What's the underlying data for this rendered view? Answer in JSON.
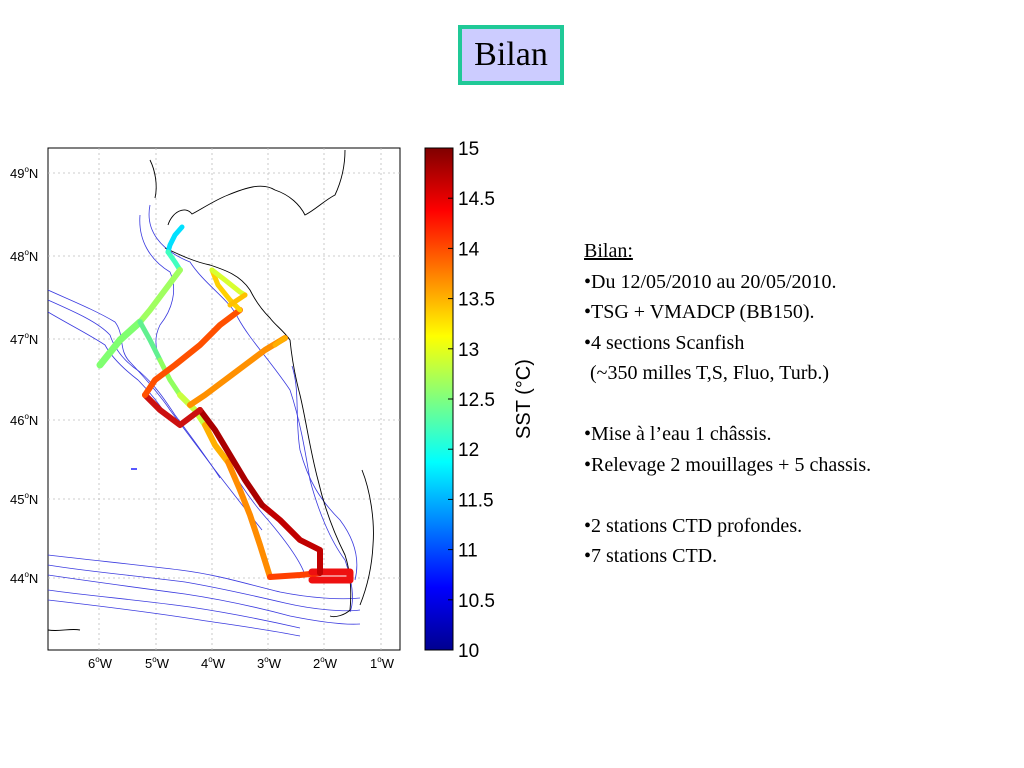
{
  "title": "Bilan",
  "map": {
    "lat_labels": [
      {
        "deg": "49",
        "hem": "N"
      },
      {
        "deg": "48",
        "hem": "N"
      },
      {
        "deg": "47",
        "hem": "N"
      },
      {
        "deg": "46",
        "hem": "N"
      },
      {
        "deg": "45",
        "hem": "N"
      },
      {
        "deg": "44",
        "hem": "N"
      }
    ],
    "lon_labels": [
      {
        "deg": "6",
        "hem": "W"
      },
      {
        "deg": "5",
        "hem": "W"
      },
      {
        "deg": "4",
        "hem": "W"
      },
      {
        "deg": "3",
        "hem": "W"
      },
      {
        "deg": "2",
        "hem": "W"
      },
      {
        "deg": "1",
        "hem": "W"
      }
    ],
    "colorbar": {
      "label": "SST (°C)",
      "min": 10,
      "max": 15,
      "ticks": [
        "15",
        "14.5",
        "14",
        "13.5",
        "13",
        "12.5",
        "12",
        "11.5",
        "11",
        "10.5",
        "10"
      ]
    }
  },
  "notes": {
    "heading": "Bilan:",
    "lines": [
      "•Du 12/05/2010 au 20/05/2010.",
      "•TSG + VMADCP (BB150).",
      "•4 sections Scanfish",
      " (~350 milles T,S, Fluo, Turb.)",
      "",
      "•Mise à l’eau 1 châssis.",
      "•Relevage 2 mouillages + 5 chassis.",
      "",
      "•2 stations CTD profondes.",
      "•7 stations CTD."
    ]
  }
}
